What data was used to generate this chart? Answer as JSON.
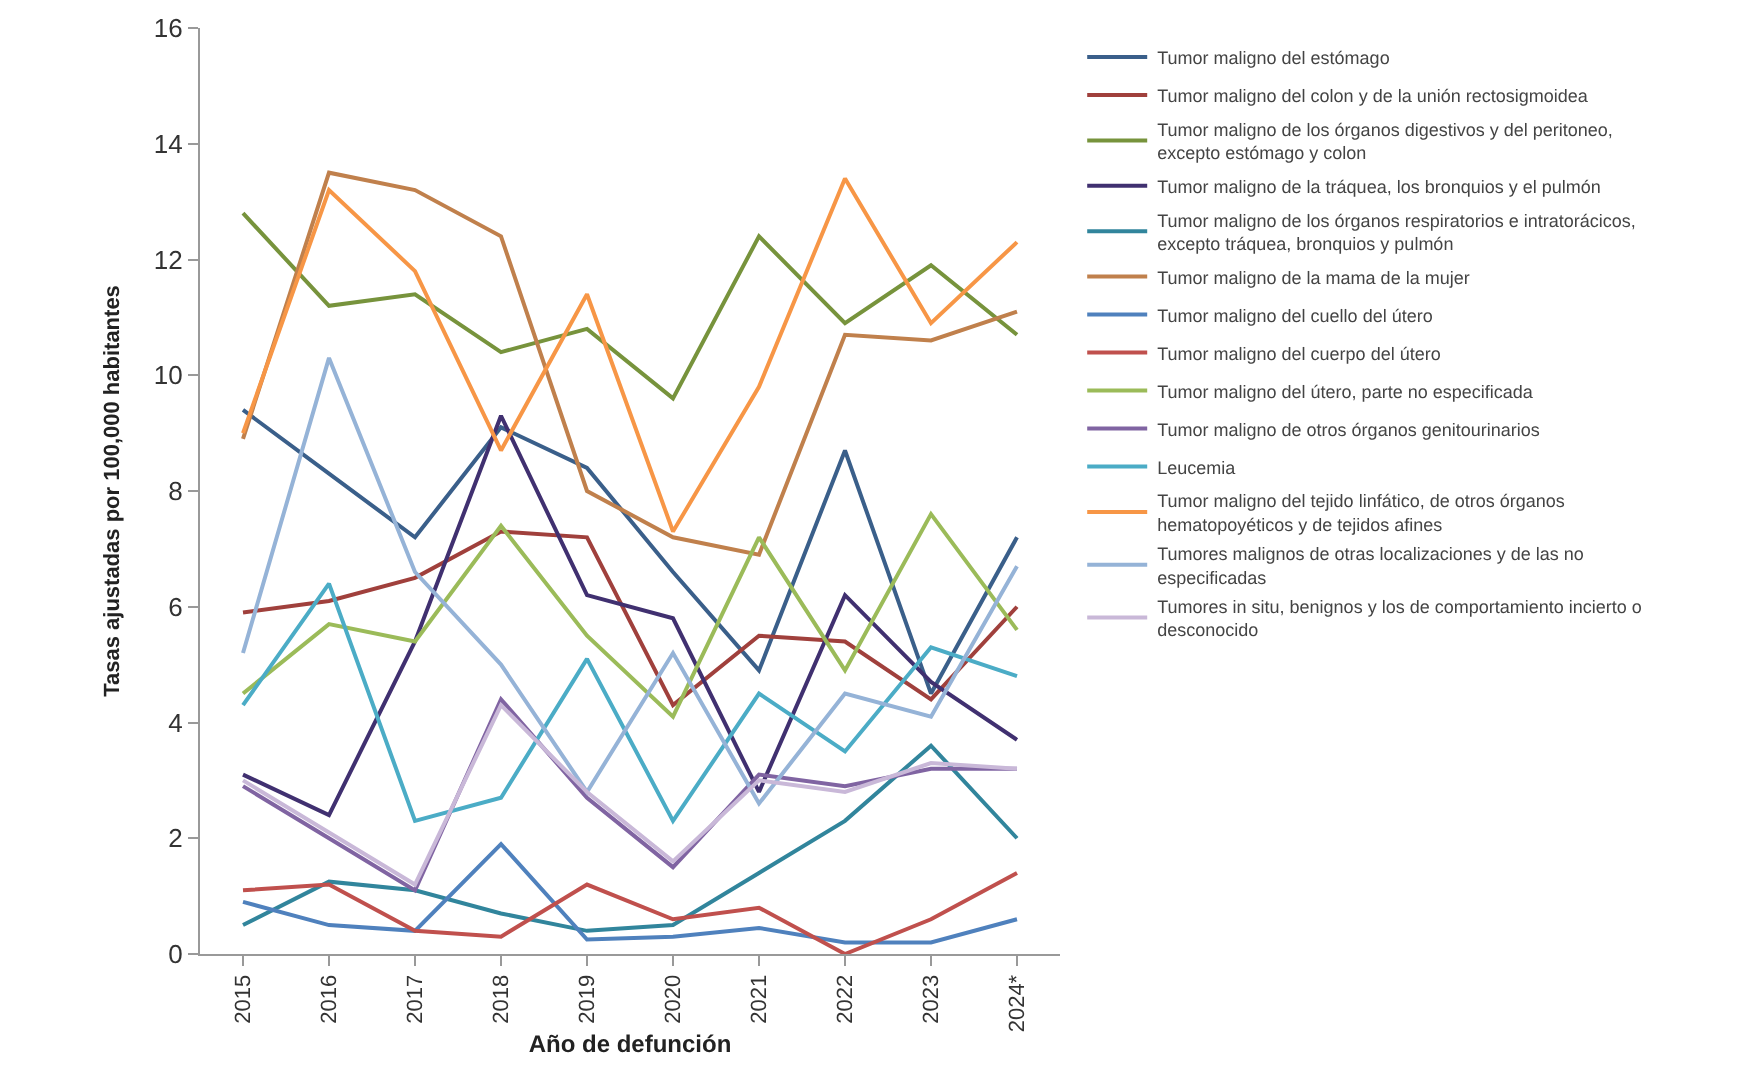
{
  "chart_data": {
    "type": "line",
    "xlabel": "Año de defunción",
    "ylabel": "Tasas ajustadas por 100,000 habitantes",
    "categories": [
      "2015",
      "2016",
      "2017",
      "2018",
      "2019",
      "2020",
      "2021",
      "2022",
      "2023",
      "2024*"
    ],
    "ylim": [
      0,
      16
    ],
    "yticks": [
      0,
      2,
      4,
      6,
      8,
      10,
      12,
      14,
      16
    ],
    "grid": false,
    "legend": "right",
    "marker": "none",
    "line_style": "solid",
    "series": [
      {
        "name": "Tumor maligno del estómago",
        "color": "#3a5f8a",
        "values": [
          9.4,
          8.3,
          7.2,
          9.1,
          8.4,
          6.6,
          4.9,
          8.7,
          4.5,
          7.2
        ]
      },
      {
        "name": "Tumor maligno del colon y de la unión rectosigmoidea",
        "color": "#a0403c",
        "values": [
          5.9,
          6.1,
          6.5,
          7.3,
          7.2,
          4.3,
          5.5,
          5.4,
          4.4,
          6.0
        ]
      },
      {
        "name": "Tumor maligno de los órganos digestivos y del peritoneo, excepto estómago y colon",
        "color": "#77933c",
        "values": [
          12.8,
          11.2,
          11.4,
          10.4,
          10.8,
          9.6,
          12.4,
          10.9,
          11.9,
          10.7
        ]
      },
      {
        "name": "Tumor maligno de la tráquea, los bronquios y el pulmón",
        "color": "#403070",
        "values": [
          3.1,
          2.4,
          5.4,
          9.3,
          6.2,
          5.8,
          2.8,
          6.2,
          4.7,
          3.7
        ]
      },
      {
        "name": "Tumor maligno de los órganos respiratorios e intratorácicos, excepto tráquea, bronquios y pulmón",
        "color": "#31859c",
        "values": [
          0.5,
          1.25,
          1.1,
          0.7,
          0.4,
          0.5,
          1.4,
          2.3,
          3.6,
          2.0
        ]
      },
      {
        "name": "Tumor maligno de la mama de la mujer",
        "color": "#c0804c",
        "values": [
          8.9,
          13.5,
          13.2,
          12.4,
          8.0,
          7.2,
          6.9,
          10.7,
          10.6,
          11.1
        ]
      },
      {
        "name": "Tumor maligno del cuello del útero",
        "color": "#4f81bd",
        "values": [
          0.9,
          0.5,
          0.4,
          1.9,
          0.25,
          0.3,
          0.45,
          0.2,
          0.2,
          0.6
        ]
      },
      {
        "name": "Tumor maligno del cuerpo del útero",
        "color": "#c0504d",
        "values": [
          1.1,
          1.2,
          0.4,
          0.3,
          1.2,
          0.6,
          0.8,
          0.0,
          0.6,
          1.4
        ]
      },
      {
        "name": "Tumor maligno del útero, parte no especificada",
        "color": "#9bbb59",
        "values": [
          4.5,
          5.7,
          5.4,
          7.4,
          5.5,
          4.1,
          7.2,
          4.9,
          7.6,
          5.6
        ]
      },
      {
        "name": "Tumor maligno de otros órganos genitourinarios",
        "color": "#8064a2",
        "values": [
          2.9,
          2.0,
          1.1,
          4.4,
          2.7,
          1.5,
          3.1,
          2.9,
          3.2,
          3.2
        ]
      },
      {
        "name": "Leucemia",
        "color": "#4bacc6",
        "values": [
          4.3,
          6.4,
          2.3,
          2.7,
          5.1,
          2.3,
          4.5,
          3.5,
          5.3,
          4.8
        ]
      },
      {
        "name": "Tumor maligno del tejido linfático, de otros órganos hematopoyéticos y de tejidos afines",
        "color": "#f79646",
        "values": [
          9.0,
          13.2,
          11.8,
          8.7,
          11.4,
          7.3,
          9.8,
          13.4,
          10.9,
          12.3
        ]
      },
      {
        "name": "Tumores malignos de otras localizaciones y de las no especificadas",
        "color": "#95b3d7",
        "values": [
          5.2,
          10.3,
          6.6,
          5.0,
          2.8,
          5.2,
          2.6,
          4.5,
          4.1,
          6.7
        ]
      },
      {
        "name": "Tumores in situ, benignos y los de comportamiento incierto o desconocido",
        "color": "#c9b8d8",
        "values": [
          3.0,
          2.1,
          1.2,
          4.3,
          2.8,
          1.6,
          3.0,
          2.8,
          3.3,
          3.2
        ]
      }
    ]
  }
}
